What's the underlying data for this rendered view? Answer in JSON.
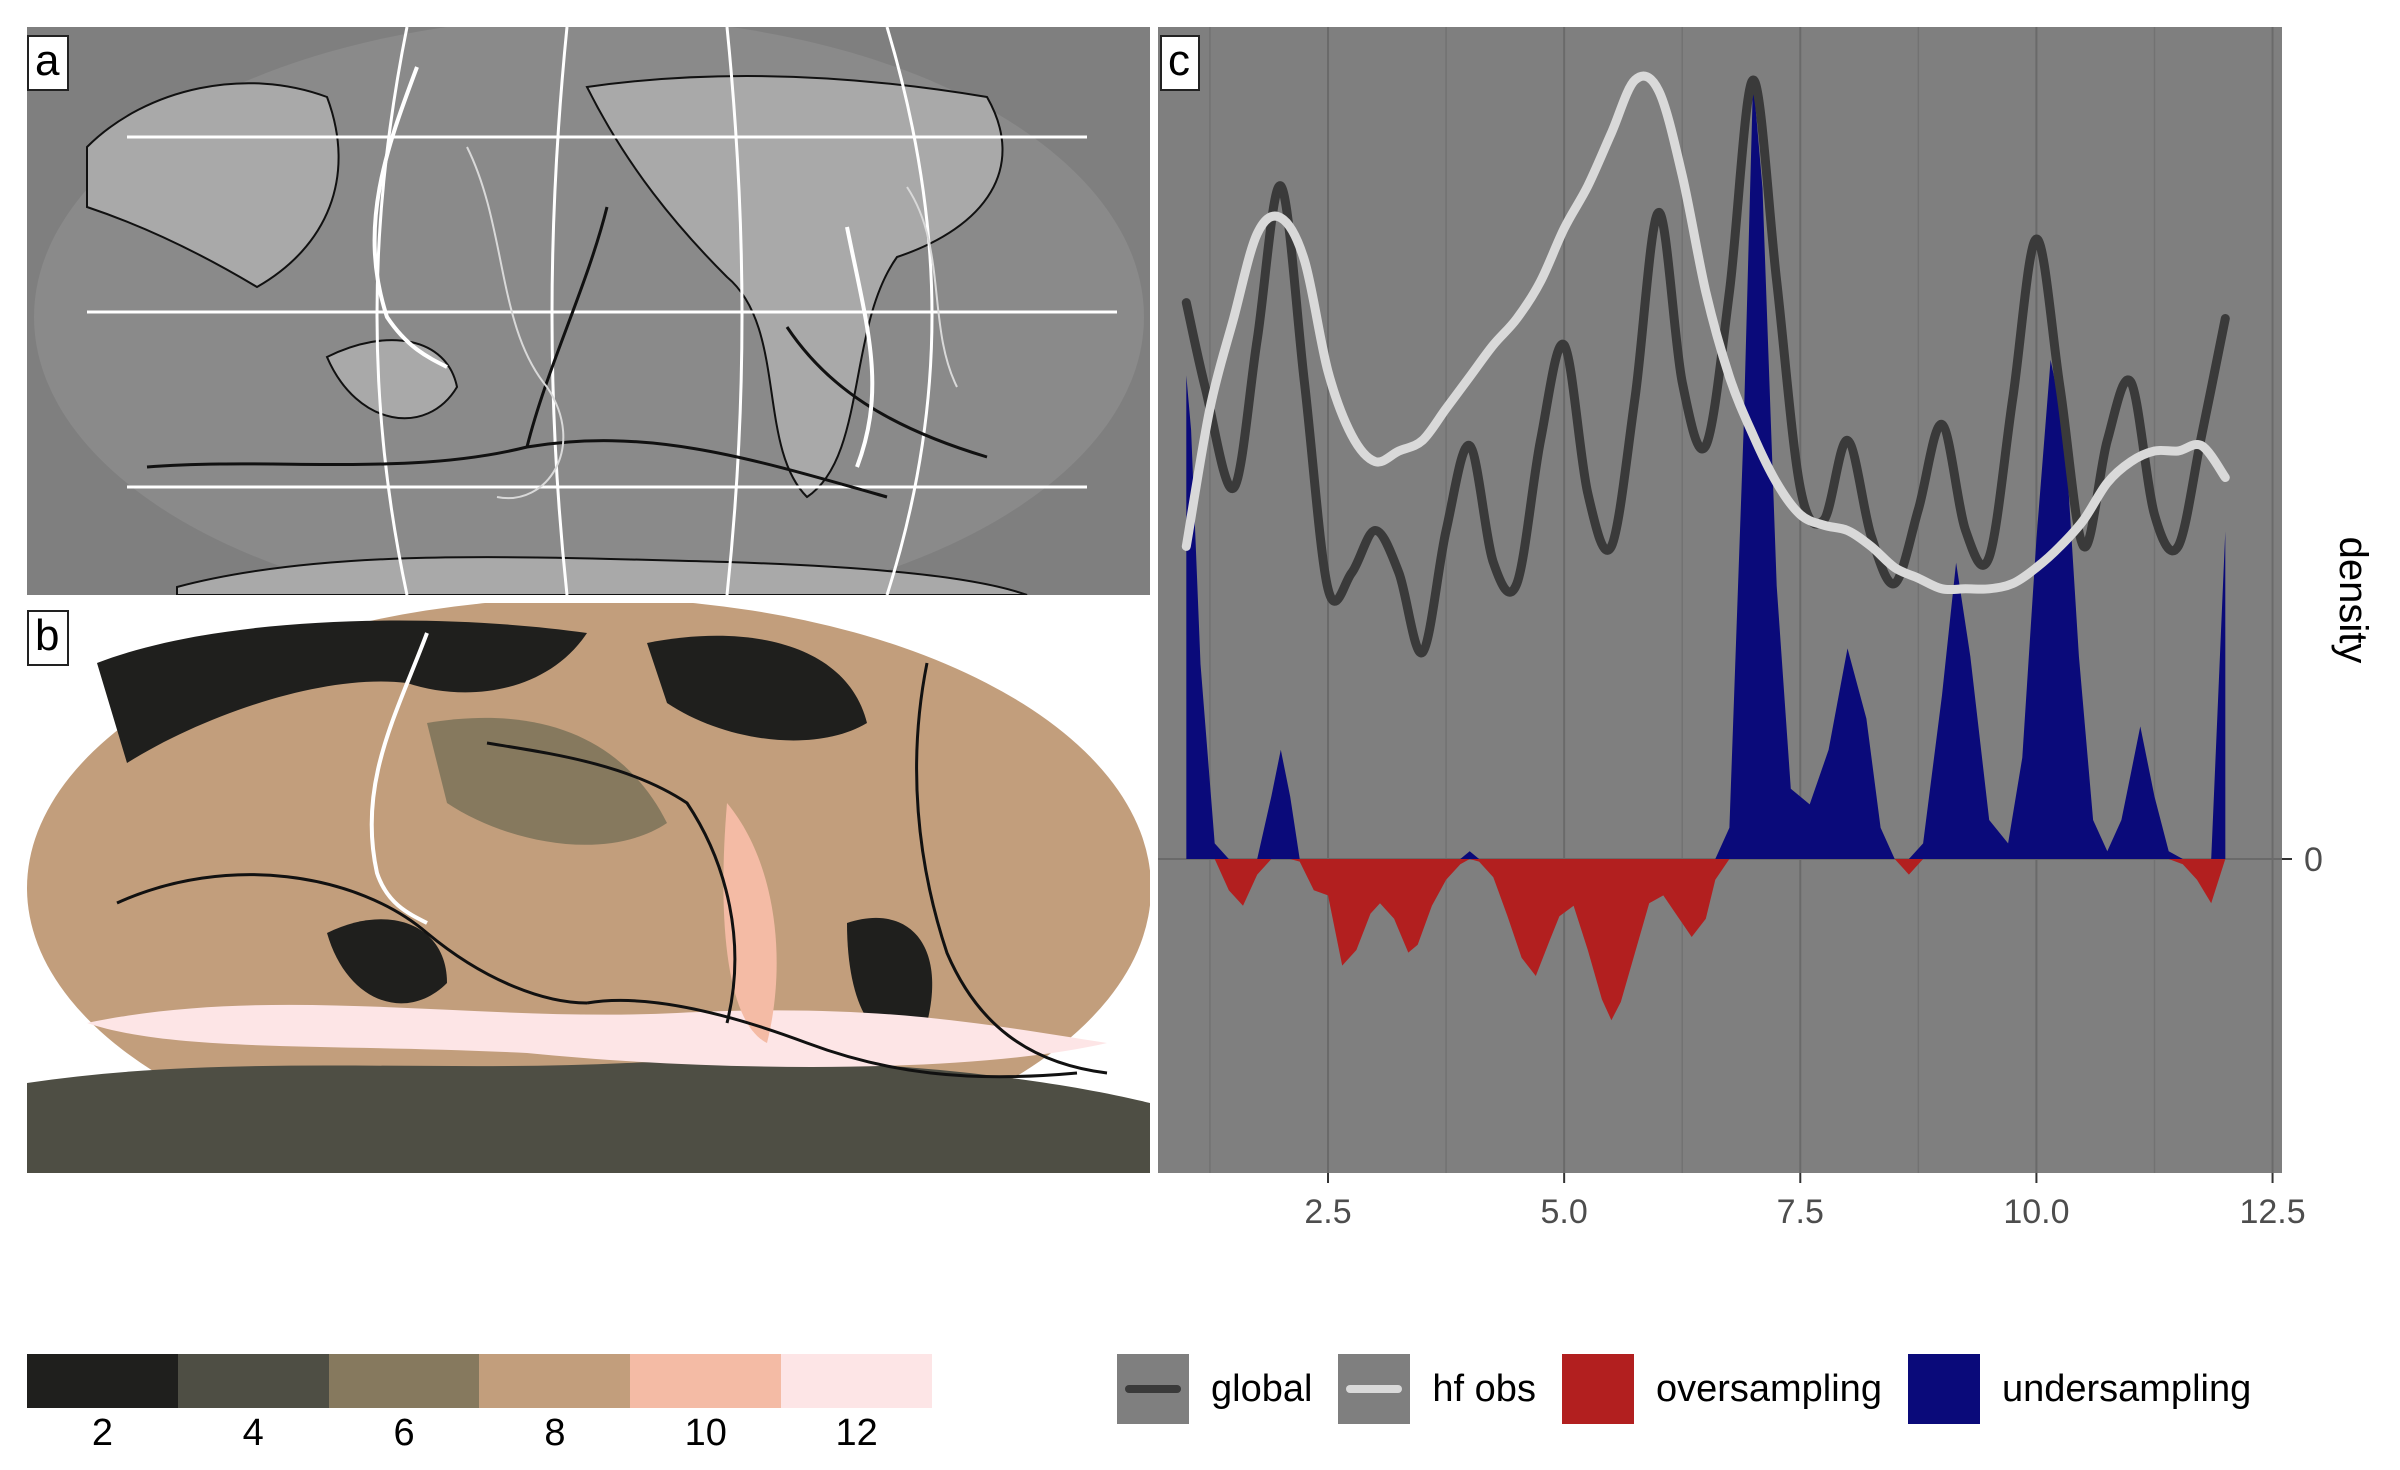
{
  "panels": {
    "a": "a",
    "b": "b",
    "c": "c"
  },
  "colorbar": {
    "ticks": [
      "2",
      "4",
      "6",
      "8",
      "10",
      "12"
    ],
    "colors": [
      "#1f1f1d",
      "#4e4e44",
      "#86795e",
      "#c29e7c",
      "#f4bba5",
      "#fde5e6"
    ]
  },
  "map_colors": {
    "ocean": "#7f7f7f",
    "land": "#a9a9a9",
    "graticule": "#ffffff",
    "plate_boundary": "#111111",
    "contour": "#d9d9d9"
  },
  "chart_data": {
    "type": "area",
    "xlabel": "",
    "ylabel": "density",
    "xlim": [
      0.7,
      12.6
    ],
    "x_ticks": [
      "2.5",
      "5.0",
      "7.5",
      "10.0",
      "12.5"
    ],
    "y_ticks": [
      "0"
    ],
    "grid": true,
    "series": [
      {
        "name": "global",
        "kind": "line",
        "color": "#3a3a3a",
        "x": [
          1.0,
          1.2,
          1.5,
          1.75,
          2.0,
          2.25,
          2.5,
          2.75,
          3.0,
          3.25,
          3.5,
          3.75,
          4.0,
          4.25,
          4.5,
          4.75,
          5.0,
          5.25,
          5.5,
          5.75,
          6.0,
          6.25,
          6.5,
          6.75,
          7.0,
          7.25,
          7.5,
          7.75,
          8.0,
          8.25,
          8.5,
          8.75,
          9.0,
          9.25,
          9.5,
          9.75,
          10.0,
          10.25,
          10.5,
          10.75,
          11.0,
          11.25,
          11.5,
          11.75,
          12.0
        ],
        "y": [
          0.58,
          0.42,
          0.23,
          0.51,
          0.8,
          0.43,
          0.04,
          0.07,
          0.15,
          0.07,
          -0.08,
          0.15,
          0.31,
          0.09,
          0.05,
          0.32,
          0.5,
          0.22,
          0.12,
          0.4,
          0.75,
          0.43,
          0.31,
          0.6,
          1.0,
          0.62,
          0.23,
          0.17,
          0.32,
          0.14,
          0.05,
          0.19,
          0.35,
          0.15,
          0.1,
          0.4,
          0.7,
          0.42,
          0.12,
          0.32,
          0.43,
          0.18,
          0.12,
          0.33,
          0.55
        ]
      },
      {
        "name": "hf obs",
        "kind": "line",
        "color": "#d9d9d9",
        "x": [
          1.0,
          1.25,
          1.5,
          1.75,
          2.0,
          2.25,
          2.5,
          2.75,
          3.0,
          3.25,
          3.5,
          3.75,
          4.0,
          4.25,
          4.5,
          4.75,
          5.0,
          5.25,
          5.5,
          5.75,
          6.0,
          6.25,
          6.5,
          6.75,
          7.0,
          7.25,
          7.5,
          7.75,
          8.0,
          8.25,
          8.5,
          8.75,
          9.0,
          9.25,
          9.5,
          9.75,
          10.0,
          10.25,
          10.5,
          10.75,
          11.0,
          11.25,
          11.5,
          11.75,
          12.0
        ],
        "y": [
          0.12,
          0.38,
          0.55,
          0.71,
          0.74,
          0.66,
          0.45,
          0.33,
          0.28,
          0.3,
          0.32,
          0.38,
          0.44,
          0.5,
          0.55,
          0.62,
          0.72,
          0.8,
          0.9,
          1.0,
          0.98,
          0.82,
          0.6,
          0.44,
          0.33,
          0.24,
          0.18,
          0.16,
          0.15,
          0.12,
          0.08,
          0.06,
          0.04,
          0.04,
          0.04,
          0.05,
          0.08,
          0.12,
          0.17,
          0.24,
          0.28,
          0.3,
          0.3,
          0.31,
          0.25
        ]
      },
      {
        "name": "difference",
        "kind": "area",
        "positive_name": "undersampling",
        "negative_name": "oversampling",
        "positive_color": "#0a0a7a",
        "negative_color": "#b21f1f",
        "x": [
          1.0,
          1.05,
          1.15,
          1.3,
          1.45,
          1.6,
          1.75,
          1.9,
          2.0,
          2.1,
          2.2,
          2.35,
          2.5,
          2.65,
          2.8,
          2.95,
          3.05,
          3.2,
          3.35,
          3.45,
          3.6,
          3.75,
          3.9,
          4.0,
          4.1,
          4.25,
          4.4,
          4.55,
          4.7,
          4.85,
          4.95,
          5.1,
          5.25,
          5.4,
          5.5,
          5.6,
          5.75,
          5.9,
          6.05,
          6.2,
          6.35,
          6.5,
          6.6,
          6.75,
          6.9,
          7.0,
          7.1,
          7.25,
          7.4,
          7.6,
          7.8,
          8.0,
          8.2,
          8.35,
          8.5,
          8.65,
          8.8,
          9.0,
          9.15,
          9.3,
          9.5,
          9.7,
          9.85,
          10.0,
          10.15,
          10.3,
          10.45,
          10.6,
          10.75,
          10.9,
          11.0,
          11.1,
          11.25,
          11.4,
          11.55,
          11.7,
          11.85,
          12.0
        ],
        "y": [
          0.62,
          0.55,
          0.25,
          0.02,
          -0.12,
          -0.18,
          -0.06,
          0.08,
          0.14,
          0.08,
          -0.01,
          -0.12,
          -0.14,
          -0.41,
          -0.35,
          -0.21,
          -0.17,
          -0.23,
          -0.36,
          -0.33,
          -0.18,
          -0.08,
          -0.02,
          0.01,
          -0.01,
          -0.07,
          -0.22,
          -0.38,
          -0.45,
          -0.31,
          -0.22,
          -0.18,
          -0.35,
          -0.54,
          -0.62,
          -0.55,
          -0.36,
          -0.17,
          -0.14,
          -0.22,
          -0.3,
          -0.23,
          -0.08,
          0.04,
          0.55,
          1.0,
          0.86,
          0.35,
          0.09,
          0.07,
          0.14,
          0.27,
          0.18,
          0.04,
          0.0,
          -0.06,
          0.02,
          0.21,
          0.38,
          0.26,
          0.05,
          0.02,
          0.13,
          0.41,
          0.64,
          0.55,
          0.26,
          0.05,
          0.01,
          0.05,
          0.11,
          0.17,
          0.08,
          0.01,
          -0.02,
          -0.08,
          -0.17,
          0.42
        ]
      }
    ]
  },
  "legend": {
    "items": [
      {
        "label": "global",
        "type": "line",
        "color": "#3a3a3a"
      },
      {
        "label": "hf obs",
        "type": "line",
        "color": "#d9d9d9"
      },
      {
        "label": "oversampling",
        "type": "fill",
        "color": "#b21f1f"
      },
      {
        "label": "undersampling",
        "type": "fill",
        "color": "#0a0a7a"
      }
    ]
  }
}
